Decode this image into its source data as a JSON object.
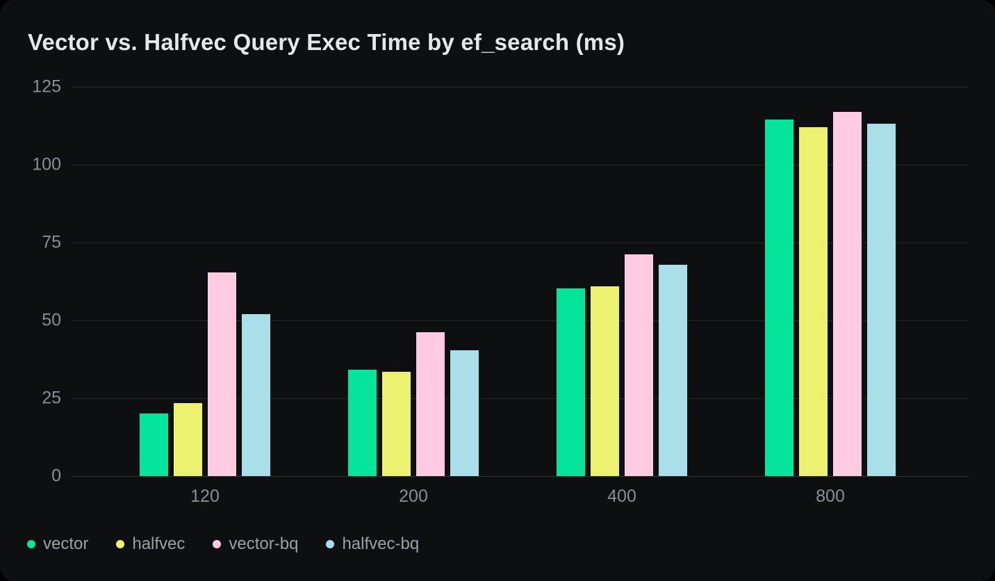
{
  "chart_data": {
    "type": "bar",
    "title": "Vector vs. Halfvec Query Exec Time by ef_search (ms)",
    "categories": [
      "120",
      "200",
      "400",
      "800"
    ],
    "series": [
      {
        "name": "vector",
        "color": "#04e59b",
        "values": [
          20.1,
          34.2,
          60.2,
          114.6
        ]
      },
      {
        "name": "halfvec",
        "color": "#edf170",
        "values": [
          23.5,
          33.4,
          61.0,
          112.0
        ]
      },
      {
        "name": "vector-bq",
        "color": "#ffcbe3",
        "values": [
          65.5,
          46.3,
          71.3,
          116.9
        ]
      },
      {
        "name": "halfvec-bq",
        "color": "#aadfe9",
        "values": [
          52.0,
          40.4,
          67.8,
          113.2
        ]
      }
    ],
    "xlabel": "",
    "ylabel": "",
    "ylim": [
      0,
      125
    ],
    "yticks": [
      0,
      25,
      50,
      75,
      100,
      125
    ],
    "grid": true,
    "legend_position": "bottom-left"
  },
  "colors": {
    "page_bg": "#000000",
    "card_bg": "#0e0f10",
    "title_text": "#e6e7e9",
    "axis_label": "#8b8e94",
    "legend_label": "#9da1a7",
    "gridline": "rgba(255,255,255,0.10)",
    "zeroline": "rgba(255,255,255,0.16)"
  }
}
